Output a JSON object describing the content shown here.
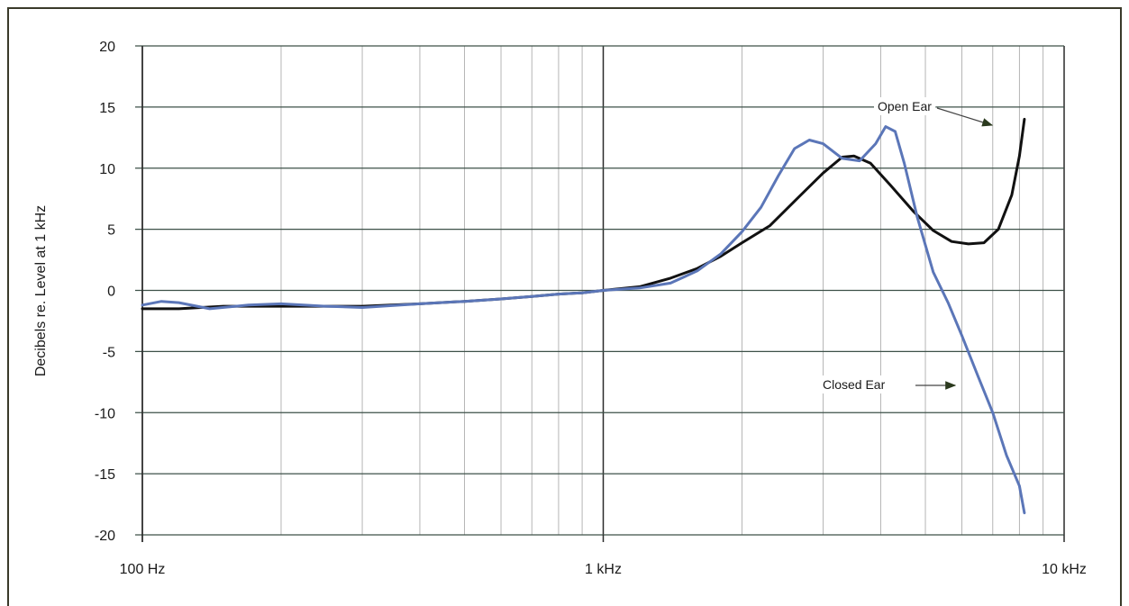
{
  "chart_data": {
    "type": "line",
    "title": "",
    "xlabel": "",
    "ylabel": "Decibels re. Level at 1 kHz",
    "x_scale": "log",
    "xlim": [
      100,
      10000
    ],
    "ylim": [
      -20,
      20
    ],
    "grid": true,
    "x_ticks": [
      {
        "value": 100,
        "label": "100 Hz"
      },
      {
        "value": 1000,
        "label": "1 kHz"
      },
      {
        "value": 10000,
        "label": "10 kHz"
      }
    ],
    "y_ticks": [
      {
        "value": 20,
        "label": "20"
      },
      {
        "value": 15,
        "label": "15"
      },
      {
        "value": 10,
        "label": "10"
      },
      {
        "value": 5,
        "label": "5"
      },
      {
        "value": 0,
        "label": "0"
      },
      {
        "value": -5,
        "label": "-5"
      },
      {
        "value": -10,
        "label": "-10"
      },
      {
        "value": -15,
        "label": "-15"
      },
      {
        "value": -20,
        "label": "-20"
      }
    ],
    "series": [
      {
        "name": "Open Ear",
        "color": "#111111",
        "points": [
          [
            100,
            -1.5
          ],
          [
            120,
            -1.5
          ],
          [
            150,
            -1.3
          ],
          [
            200,
            -1.3
          ],
          [
            250,
            -1.3
          ],
          [
            300,
            -1.3
          ],
          [
            400,
            -1.1
          ],
          [
            500,
            -0.9
          ],
          [
            600,
            -0.7
          ],
          [
            700,
            -0.5
          ],
          [
            800,
            -0.3
          ],
          [
            900,
            -0.2
          ],
          [
            1000,
            0
          ],
          [
            1200,
            0.3
          ],
          [
            1400,
            1.0
          ],
          [
            1600,
            1.8
          ],
          [
            1800,
            2.8
          ],
          [
            2000,
            3.9
          ],
          [
            2300,
            5.3
          ],
          [
            2600,
            7.3
          ],
          [
            3000,
            9.6
          ],
          [
            3300,
            10.9
          ],
          [
            3500,
            11.0
          ],
          [
            3800,
            10.4
          ],
          [
            4200,
            8.6
          ],
          [
            4700,
            6.5
          ],
          [
            5200,
            4.9
          ],
          [
            5700,
            4.0
          ],
          [
            6200,
            3.8
          ],
          [
            6700,
            3.9
          ],
          [
            7200,
            5.0
          ],
          [
            7700,
            7.8
          ],
          [
            8000,
            11.0
          ],
          [
            8200,
            14.0
          ]
        ]
      },
      {
        "name": "Closed Ear",
        "color": "#5b76b8",
        "points": [
          [
            100,
            -1.2
          ],
          [
            110,
            -0.9
          ],
          [
            120,
            -1.0
          ],
          [
            140,
            -1.5
          ],
          [
            170,
            -1.2
          ],
          [
            200,
            -1.1
          ],
          [
            250,
            -1.3
          ],
          [
            300,
            -1.4
          ],
          [
            400,
            -1.1
          ],
          [
            500,
            -0.9
          ],
          [
            600,
            -0.7
          ],
          [
            700,
            -0.5
          ],
          [
            800,
            -0.3
          ],
          [
            900,
            -0.2
          ],
          [
            1000,
            0
          ],
          [
            1200,
            0.2
          ],
          [
            1400,
            0.6
          ],
          [
            1600,
            1.6
          ],
          [
            1800,
            3.0
          ],
          [
            2000,
            4.8
          ],
          [
            2200,
            6.8
          ],
          [
            2400,
            9.4
          ],
          [
            2600,
            11.6
          ],
          [
            2800,
            12.3
          ],
          [
            3000,
            12.0
          ],
          [
            3300,
            10.8
          ],
          [
            3600,
            10.6
          ],
          [
            3900,
            12.0
          ],
          [
            4100,
            13.4
          ],
          [
            4300,
            13.0
          ],
          [
            4500,
            10.4
          ],
          [
            4800,
            6.0
          ],
          [
            5200,
            1.5
          ],
          [
            5600,
            -1.0
          ],
          [
            6000,
            -3.7
          ],
          [
            6500,
            -7.0
          ],
          [
            7000,
            -10.0
          ],
          [
            7500,
            -13.5
          ],
          [
            8000,
            -16.0
          ],
          [
            8200,
            -18.2
          ]
        ]
      }
    ],
    "annotations": [
      {
        "text": "Open Ear",
        "series": "Open Ear"
      },
      {
        "text": "Closed Ear",
        "series": "Closed Ear"
      }
    ]
  }
}
